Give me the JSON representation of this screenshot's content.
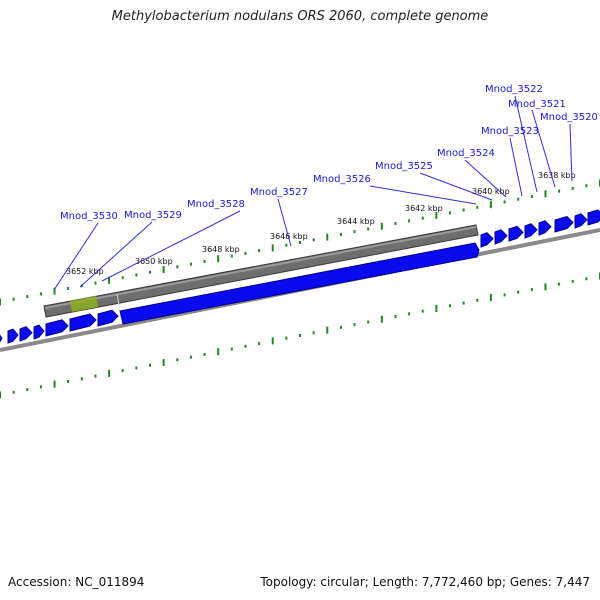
{
  "title": "Methylobacterium nodulans ORS 2060, complete genome",
  "footer": {
    "accession": "Accession: NC_011894",
    "summary": "Topology: circular; Length: 7,772,460 bp; Genes: 7,447"
  },
  "colors": {
    "gene_fill": "#0a0aee",
    "gene_stroke": "#00008a",
    "selection_bar": "#6a6a6a",
    "highlight": "#8ab020",
    "backbone": "#8a8a8a",
    "tick": "#1f8a1f",
    "label_text": "#1a1ad0",
    "leader_line": "#3030e0"
  },
  "ticks": [
    {
      "label": "3638 kbp"
    },
    {
      "label": "3640 kbp"
    },
    {
      "label": "3642 kbp"
    },
    {
      "label": "3644 kbp"
    },
    {
      "label": "3646 kbp"
    },
    {
      "label": "3648 kbp"
    },
    {
      "label": "3650 kbp"
    },
    {
      "label": "3652 kbp"
    }
  ],
  "genes": [
    {
      "label": "Mnod_3522"
    },
    {
      "label": "Mnod_3521"
    },
    {
      "label": "Mnod_3520"
    },
    {
      "label": "Mnod_3523"
    },
    {
      "label": "Mnod_3524"
    },
    {
      "label": "Mnod_3525"
    },
    {
      "label": "Mnod_3526"
    },
    {
      "label": "Mnod_3527"
    },
    {
      "label": "Mnod_3528"
    },
    {
      "label": "Mnod_3529"
    },
    {
      "label": "Mnod_3530"
    }
  ]
}
